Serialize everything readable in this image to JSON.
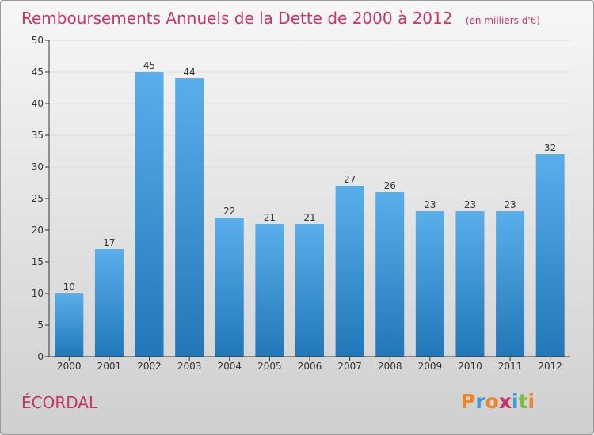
{
  "header": {
    "title": "Remboursements Annuels de la Dette de 2000 à 2012",
    "unit_note": "(en milliers d'€)"
  },
  "place_name": "ÉCORDAL",
  "brand": {
    "name": "Proxiti"
  },
  "colors": {
    "title": "#c8336a",
    "place": "#c8336a",
    "bar_light": "#5aaeea",
    "bar_dark": "#2277b8",
    "axis": "#333333",
    "grid": "#dcdcdc",
    "background_top": "#f7f7f7",
    "background_bottom": "#cfcfcf"
  },
  "chart_data": {
    "type": "bar",
    "title": "Remboursements Annuels de la Dette de 2000 à 2012",
    "xlabel": "",
    "ylabel": "",
    "categories": [
      "2000",
      "2001",
      "2002",
      "2003",
      "2004",
      "2005",
      "2006",
      "2007",
      "2008",
      "2009",
      "2010",
      "2011",
      "2012"
    ],
    "values": [
      10,
      17,
      45,
      44,
      22,
      21,
      21,
      27,
      26,
      23,
      23,
      23,
      32
    ],
    "ylim": [
      0,
      50
    ],
    "yticks": [
      0,
      5,
      10,
      15,
      20,
      25,
      30,
      35,
      40,
      45,
      50
    ],
    "grid": true,
    "legend": "none"
  }
}
